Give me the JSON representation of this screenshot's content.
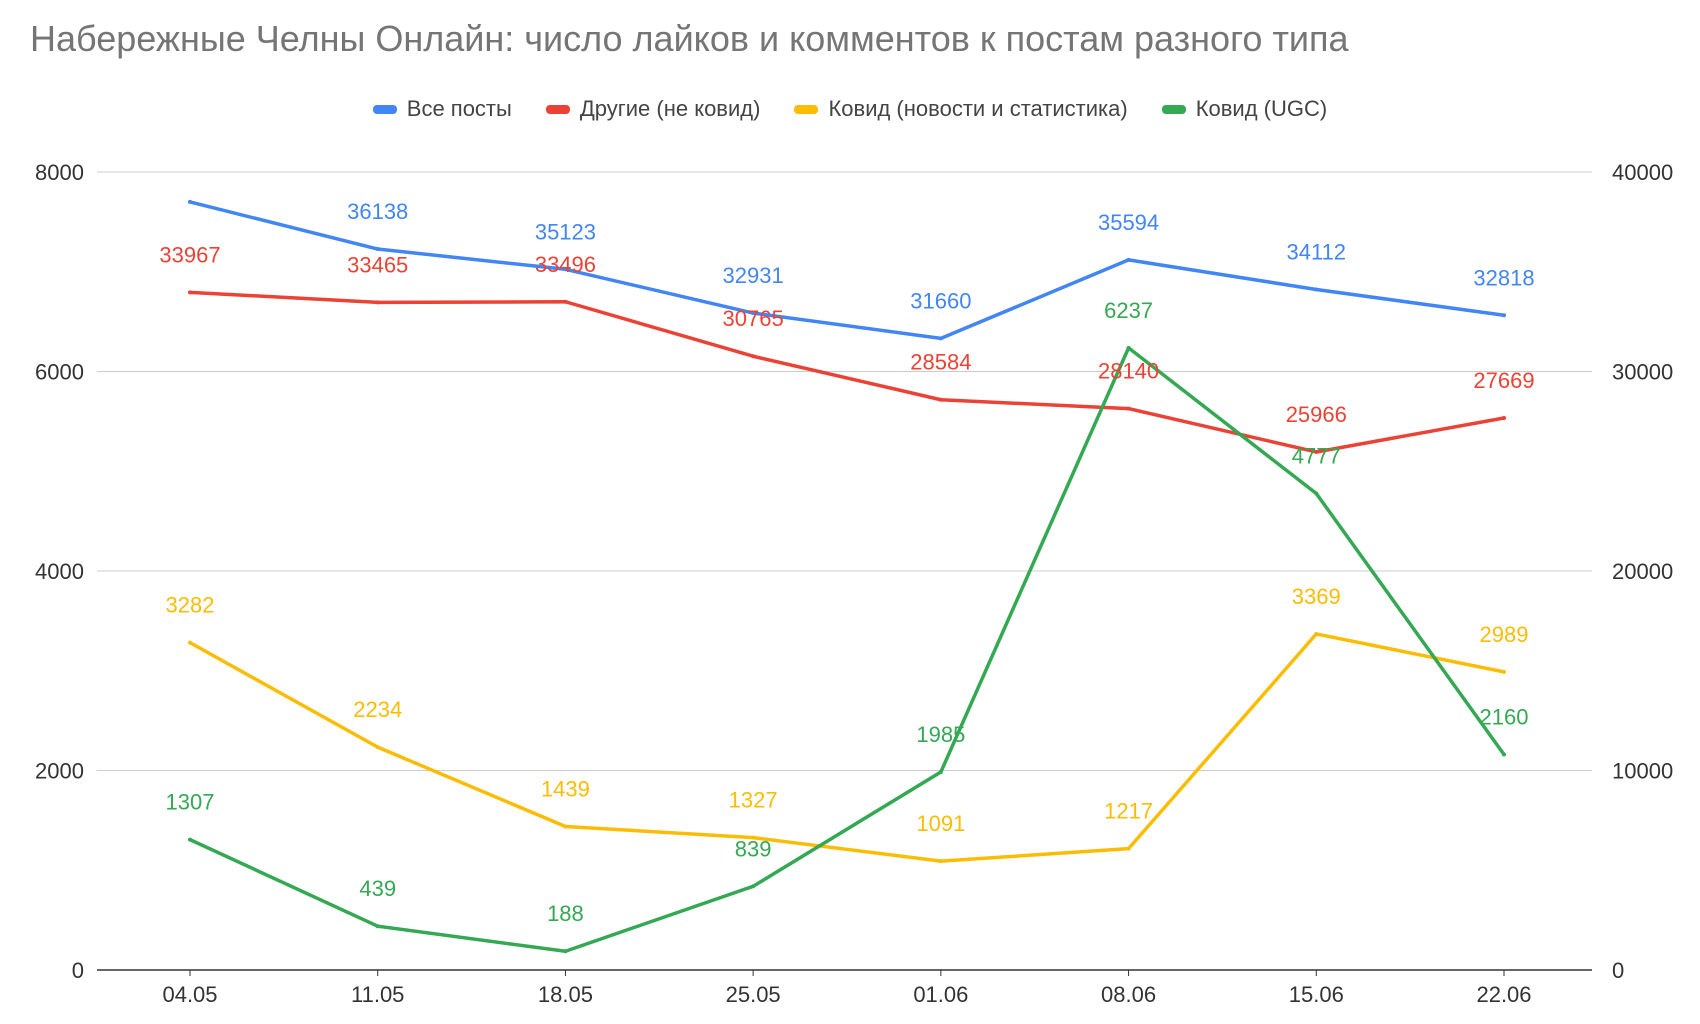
{
  "chart_data": {
    "type": "line",
    "title": "Набережные Челны Онлайн: число лайков и комментов к постам разного типа",
    "categories": [
      "04.05",
      "11.05",
      "18.05",
      "25.05",
      "01.06",
      "08.06",
      "15.06",
      "22.06"
    ],
    "y_left": {
      "ticks": [
        "0",
        "2000",
        "4000",
        "6000",
        "8000"
      ],
      "range": [
        0,
        8000
      ]
    },
    "y_right": {
      "ticks": [
        "0",
        "10000",
        "20000",
        "30000",
        "40000"
      ],
      "range": [
        0,
        40000
      ]
    },
    "grid": true,
    "legend_position": "top",
    "series": [
      {
        "name": "Все посты",
        "color": "#4285f4",
        "axis": "right",
        "values": [
          38500,
          36138,
          35123,
          32931,
          31660,
          35594,
          34112,
          32818
        ],
        "labels": [
          "",
          "36138",
          "35123",
          "32931",
          "31660",
          "35594",
          "34112",
          "32818"
        ]
      },
      {
        "name": "Другие (не ковид)",
        "color": "#ea4335",
        "axis": "right",
        "values": [
          33967,
          33465,
          33496,
          30765,
          28584,
          28140,
          25966,
          27669
        ],
        "labels": [
          "33967",
          "33465",
          "33496",
          "30765",
          "28584",
          "28140",
          "25966",
          "27669"
        ]
      },
      {
        "name": "Ковид (новости и статистика)",
        "color": "#fbbc04",
        "axis": "left",
        "values": [
          3282,
          2234,
          1439,
          1327,
          1091,
          1217,
          3369,
          2989
        ],
        "labels": [
          "3282",
          "2234",
          "1439",
          "1327",
          "1091",
          "1217",
          "3369",
          "2989"
        ]
      },
      {
        "name": "Ковид (UGC)",
        "color": "#34a853",
        "axis": "left",
        "values": [
          1307,
          439,
          188,
          839,
          1985,
          6237,
          4777,
          2160
        ],
        "labels": [
          "1307",
          "439",
          "188",
          "839",
          "1985",
          "6237",
          "4777",
          "2160"
        ]
      }
    ]
  }
}
